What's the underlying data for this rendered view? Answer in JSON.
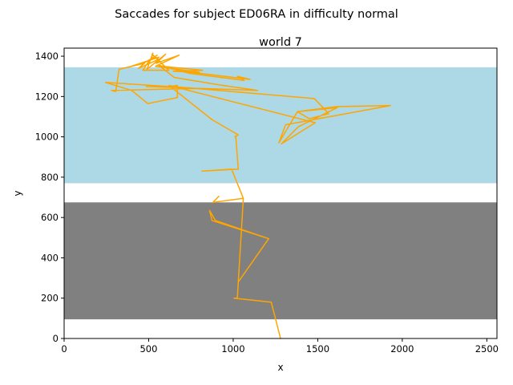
{
  "figure": {
    "suptitle": "Saccades for subject ED06RA in difficulty normal"
  },
  "chart_data": {
    "type": "line",
    "title": "world 7",
    "xlabel": "x",
    "ylabel": "y",
    "xlim": [
      0,
      2560
    ],
    "ylim": [
      0,
      1440
    ],
    "xticks": [
      0,
      500,
      1000,
      1500,
      2000,
      2500
    ],
    "yticks": [
      0,
      200,
      400,
      600,
      800,
      1000,
      1200,
      1400
    ],
    "grid": false,
    "regions": [
      {
        "name": "upper-band",
        "color": "#add8e6",
        "y0": 770,
        "y1": 1345
      },
      {
        "name": "lower-band",
        "color": "#808080",
        "y0": 95,
        "y1": 675
      }
    ],
    "series": [
      {
        "name": "saccades",
        "color": "#ffa500",
        "points": [
          [
            1280,
            0
          ],
          [
            1225,
            180
          ],
          [
            1005,
            200
          ],
          [
            1020,
            200
          ],
          [
            1025,
            205
          ],
          [
            1030,
            280
          ],
          [
            1210,
            495
          ],
          [
            875,
            585
          ],
          [
            860,
            635
          ],
          [
            895,
            585
          ],
          [
            1210,
            495
          ],
          [
            1030,
            280
          ],
          [
            1030,
            280
          ],
          [
            1060,
            695
          ],
          [
            880,
            675
          ],
          [
            915,
            705
          ],
          [
            880,
            675
          ],
          [
            1060,
            695
          ],
          [
            990,
            840
          ],
          [
            815,
            830
          ],
          [
            1030,
            840
          ],
          [
            1015,
            1005
          ],
          [
            1010,
            1000
          ],
          [
            1030,
            1010
          ],
          [
            875,
            1085
          ],
          [
            620,
            1255
          ],
          [
            1485,
            1070
          ],
          [
            1285,
            965
          ],
          [
            1385,
            1050
          ],
          [
            1615,
            1145
          ],
          [
            1380,
            1125
          ],
          [
            1615,
            1150
          ],
          [
            1930,
            1155
          ],
          [
            1310,
            1060
          ],
          [
            1270,
            970
          ],
          [
            1380,
            1125
          ],
          [
            1450,
            1090
          ],
          [
            1565,
            1115
          ],
          [
            1480,
            1190
          ],
          [
            635,
            1250
          ],
          [
            670,
            1255
          ],
          [
            670,
            1195
          ],
          [
            495,
            1165
          ],
          [
            400,
            1230
          ],
          [
            245,
            1270
          ],
          [
            790,
            1240
          ],
          [
            280,
            1230
          ],
          [
            305,
            1225
          ],
          [
            325,
            1335
          ],
          [
            475,
            1365
          ],
          [
            440,
            1340
          ],
          [
            560,
            1385
          ],
          [
            530,
            1400
          ],
          [
            520,
            1410
          ],
          [
            620,
            1330
          ],
          [
            465,
            1330
          ],
          [
            505,
            1380
          ],
          [
            550,
            1405
          ],
          [
            480,
            1370
          ],
          [
            380,
            1345
          ],
          [
            560,
            1395
          ],
          [
            515,
            1385
          ],
          [
            525,
            1415
          ],
          [
            490,
            1335
          ],
          [
            600,
            1410
          ],
          [
            545,
            1365
          ],
          [
            680,
            1405
          ],
          [
            540,
            1350
          ],
          [
            800,
            1320
          ],
          [
            645,
            1325
          ],
          [
            820,
            1330
          ],
          [
            580,
            1350
          ],
          [
            740,
            1315
          ],
          [
            1065,
            1280
          ],
          [
            1025,
            1300
          ],
          [
            1100,
            1285
          ],
          [
            700,
            1325
          ],
          [
            560,
            1355
          ],
          [
            650,
            1295
          ],
          [
            900,
            1260
          ],
          [
            1145,
            1230
          ],
          [
            485,
            1250
          ]
        ]
      }
    ]
  }
}
